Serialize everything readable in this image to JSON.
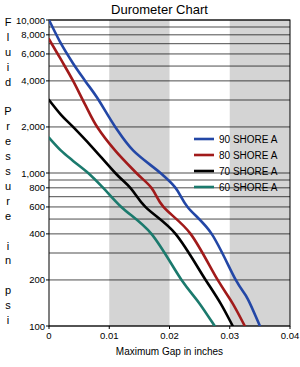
{
  "chart_data": {
    "type": "line",
    "title": "Durometer Chart",
    "x_label": "Maximum Gap in inches",
    "y_label": "Fluid Pressure in psi",
    "log": "y",
    "grid": true,
    "legend": "right",
    "xlim": [
      0,
      0.04
    ],
    "xticks": [
      0,
      0.01,
      0.02,
      0.03,
      0.04
    ],
    "ylim": [
      100,
      10000
    ],
    "yticks": [
      {
        "value": 10000,
        "label": "10,000"
      },
      {
        "value": 8000,
        "label": "8,000"
      },
      {
        "value": 6000,
        "label": "6,000"
      },
      {
        "value": 4000,
        "label": "4,000"
      },
      {
        "value": 2000,
        "label": "2,000"
      },
      {
        "value": 1000,
        "label": "1,000"
      },
      800,
      600,
      400,
      200,
      100
    ],
    "series": [
      {
        "name": "90 SHORE A",
        "color": "#2347a6",
        "x": [
          0,
          0.002,
          0.004,
          0.006,
          0.008,
          0.011,
          0.014,
          0.0185,
          0.021,
          0.023,
          0.027,
          0.031,
          0.033,
          0.035
        ],
        "values": [
          10000,
          7000,
          5200,
          4000,
          3100,
          2000,
          1400,
          1000,
          800,
          600,
          400,
          200,
          150,
          100
        ]
      },
      {
        "name": "80 SHORE A",
        "color": "#a11a1a",
        "x": [
          0,
          0.002,
          0.004,
          0.006,
          0.008,
          0.011,
          0.0145,
          0.017,
          0.019,
          0.0235,
          0.028,
          0.0305,
          0.0325
        ],
        "values": [
          7500,
          5500,
          4000,
          2800,
          2000,
          1400,
          1000,
          800,
          600,
          400,
          200,
          140,
          100
        ]
      },
      {
        "name": "70 SHORE A",
        "color": "#000000",
        "x": [
          0,
          0.002,
          0.004,
          0.007,
          0.011,
          0.0135,
          0.016,
          0.021,
          0.026,
          0.0285,
          0.0305
        ],
        "values": [
          3000,
          2400,
          2000,
          1500,
          1000,
          800,
          600,
          400,
          200,
          140,
          100
        ]
      },
      {
        "name": "60 SHORE A",
        "color": "#1b7a6d",
        "x": [
          0,
          0.002,
          0.004,
          0.0065,
          0.009,
          0.012,
          0.017,
          0.022,
          0.025,
          0.0275
        ],
        "values": [
          1700,
          1400,
          1200,
          1000,
          800,
          600,
          400,
          200,
          140,
          100
        ]
      }
    ]
  }
}
